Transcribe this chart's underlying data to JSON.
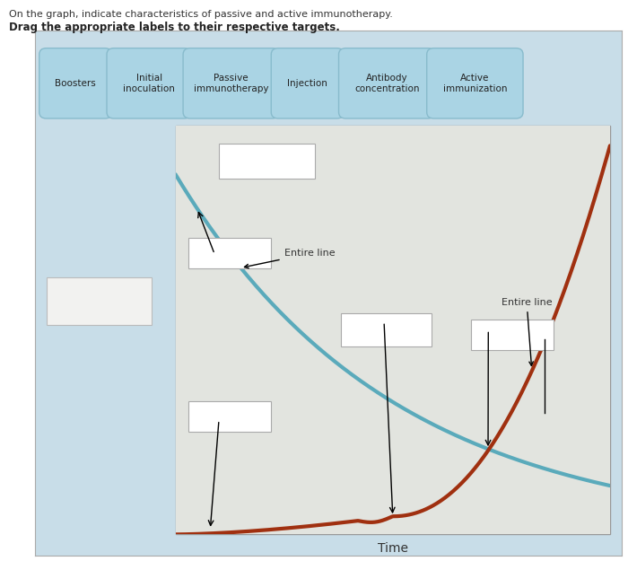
{
  "title_line1": "On the graph, indicate characteristics of passive and active immunotherapy.",
  "title_line2": "Drag the appropriate labels to their respective targets.",
  "button_labels": [
    "Boosters",
    "Initial\ninoculation",
    "Passive\nimmunotherapy",
    "Injection",
    "Antibody\nconcentration",
    "Active\nimmunization"
  ],
  "xlabel": "Time",
  "outer_panel_bg": "#c8dde8",
  "plot_bg_color": "#e2e4df",
  "page_bg": "#ffffff",
  "passive_color": "#5aaabb",
  "active_color": "#a03010",
  "button_bg": "#aad4e4",
  "button_border": "#88bbcc",
  "entire_line_label": "Entire line",
  "left_box_bg": "#f2f2f0",
  "left_box_edge": "#bbbbbb",
  "annot_box_bg": "#ffffff",
  "annot_box_edge": "#aaaaaa"
}
